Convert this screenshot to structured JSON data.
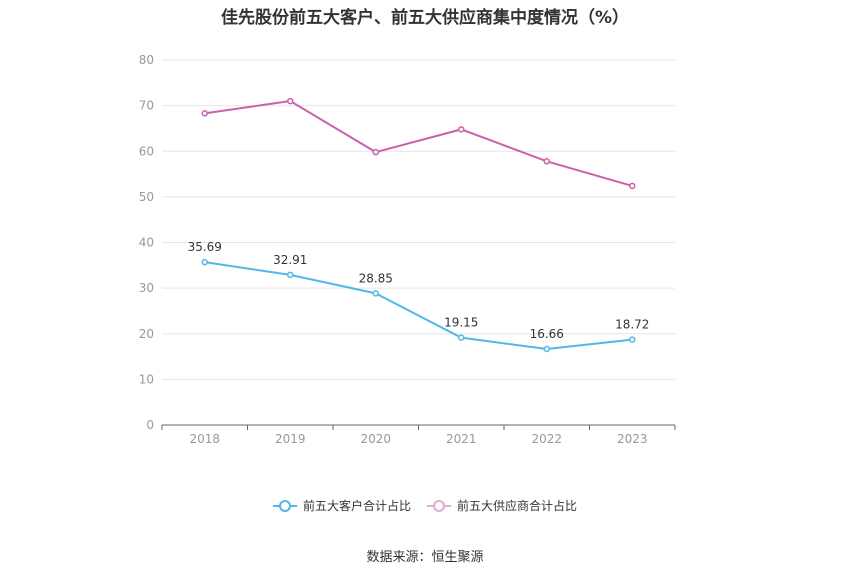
{
  "title": "佳先股份前五大客户、前五大供应商集中度情况（%）",
  "source": "数据来源：恒生聚源",
  "chart_data": {
    "type": "line",
    "title": "佳先股份前五大客户、前五大供应商集中度情况（%）",
    "categories": [
      "2018",
      "2019",
      "2020",
      "2021",
      "2022",
      "2023"
    ],
    "ylim": [
      0,
      80
    ],
    "yticks": [
      0,
      10,
      20,
      30,
      40,
      50,
      60,
      70,
      80
    ],
    "grid": true,
    "legend_position": "bottom",
    "series": [
      {
        "name": "前五大客户合计占比",
        "color": "#4fb8ec",
        "values": [
          35.69,
          32.91,
          28.85,
          19.15,
          16.66,
          18.72
        ],
        "labels": [
          "35.69",
          "32.91",
          "28.85",
          "19.15",
          "16.66",
          "18.72"
        ],
        "show_labels": true
      },
      {
        "name": "前五大供应商合计占比",
        "color": "#cc5fae",
        "legend_color": "#e9a8d6",
        "values": [
          68.3,
          71.0,
          59.8,
          64.8,
          57.8,
          52.4
        ],
        "show_labels": false
      }
    ]
  }
}
